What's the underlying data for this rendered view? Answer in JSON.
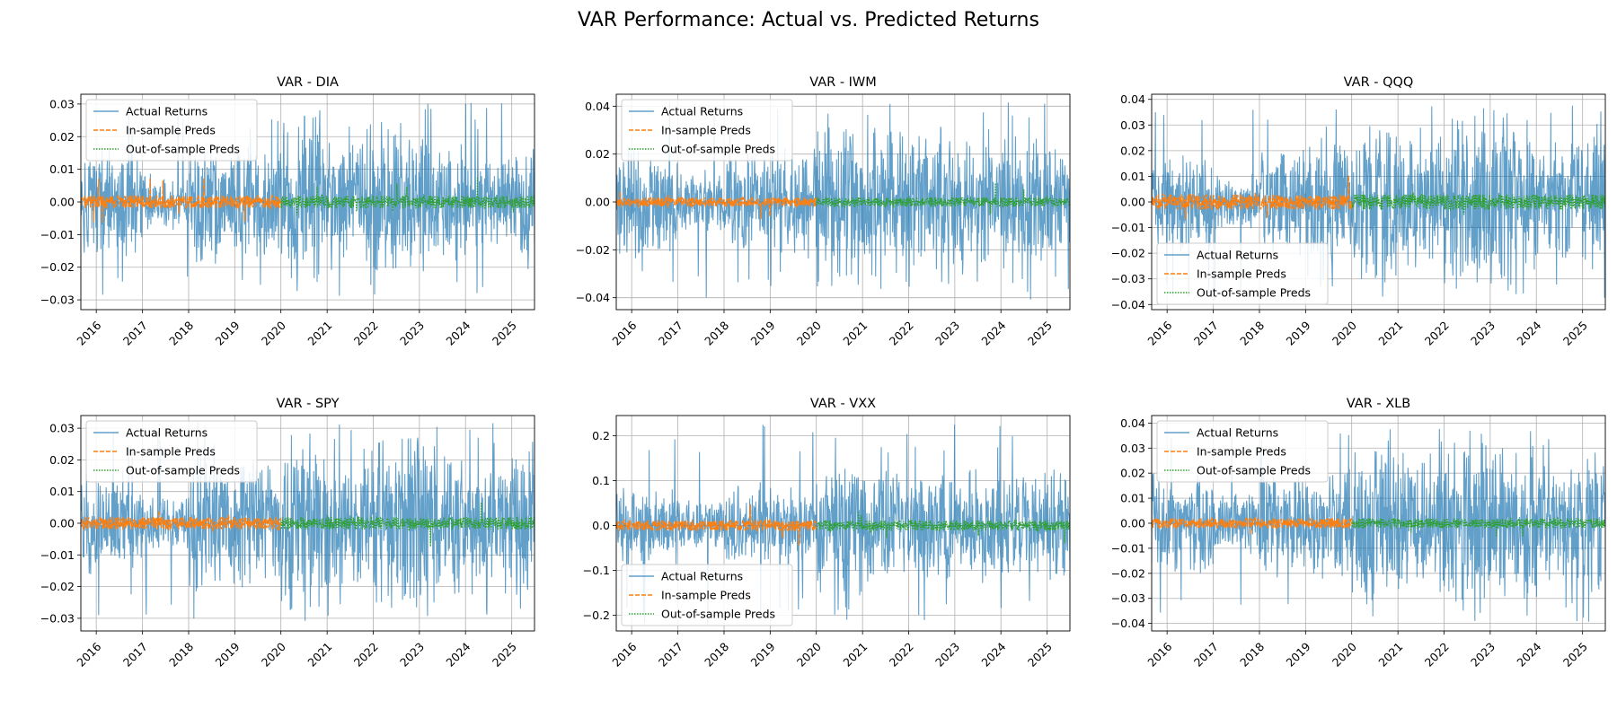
{
  "figure": {
    "title": "VAR Performance: Actual vs. Predicted Returns"
  },
  "colors": {
    "actual": "#1f77b4",
    "insample": "#ff7f0e",
    "outsample": "#2ca02c",
    "grid": "#b0b0b0"
  },
  "chart_data": [
    {
      "type": "line",
      "title": "VAR - DIA",
      "legend_position": "upper-left",
      "grid": true,
      "x_range": [
        "2015-09-01",
        "2025-06-30"
      ],
      "split_date": "2020-01-01",
      "ylim": [
        -0.033,
        0.033
      ],
      "yticks": [
        -0.03,
        -0.02,
        -0.01,
        0.0,
        0.01,
        0.02,
        0.03
      ],
      "ytick_labels": [
        "−0.03",
        "−0.02",
        "−0.01",
        "0.00",
        "0.01",
        "0.02",
        "0.03"
      ],
      "xticks": [
        "2016",
        "2017",
        "2018",
        "2019",
        "2020",
        "2021",
        "2022",
        "2023",
        "2024",
        "2025"
      ],
      "series": [
        {
          "name": "Actual Returns",
          "style": "solid",
          "amplitude_by_year": [
            0.018,
            0.009,
            0.02,
            0.021,
            0.03,
            0.02,
            0.024,
            0.022,
            0.015,
            0.02
          ],
          "min": -0.029,
          "max": 0.031
        },
        {
          "name": "In-sample Preds",
          "style": "dashed",
          "amplitude": 0.002,
          "range": [
            "2015-09-01",
            "2020-01-01"
          ]
        },
        {
          "name": "Out-of-sample Preds",
          "style": "dotted",
          "amplitude": 0.002,
          "range": [
            "2020-01-01",
            "2025-06-30"
          ]
        }
      ]
    },
    {
      "type": "line",
      "title": "VAR - IWM",
      "legend_position": "upper-left",
      "grid": true,
      "x_range": [
        "2015-09-01",
        "2025-06-30"
      ],
      "split_date": "2020-01-01",
      "ylim": [
        -0.045,
        0.045
      ],
      "yticks": [
        -0.04,
        -0.02,
        0.0,
        0.02,
        0.04
      ],
      "ytick_labels": [
        "−0.04",
        "−0.02",
        "0.00",
        "0.02",
        "0.04"
      ],
      "xticks": [
        "2016",
        "2017",
        "2018",
        "2019",
        "2020",
        "2021",
        "2022",
        "2023",
        "2024",
        "2025"
      ],
      "series": [
        {
          "name": "Actual Returns",
          "style": "solid",
          "amplitude_by_year": [
            0.025,
            0.014,
            0.022,
            0.025,
            0.038,
            0.032,
            0.035,
            0.032,
            0.028,
            0.035
          ],
          "min": -0.041,
          "max": 0.042
        },
        {
          "name": "In-sample Preds",
          "style": "dashed",
          "amplitude": 0.002,
          "range": [
            "2015-09-01",
            "2020-01-01"
          ]
        },
        {
          "name": "Out-of-sample Preds",
          "style": "dotted",
          "amplitude": 0.002,
          "range": [
            "2020-01-01",
            "2025-06-30"
          ]
        }
      ]
    },
    {
      "type": "line",
      "title": "VAR - QQQ",
      "legend_position": "lower-left",
      "grid": true,
      "x_range": [
        "2015-09-01",
        "2025-06-30"
      ],
      "split_date": "2020-01-01",
      "ylim": [
        -0.042,
        0.042
      ],
      "yticks": [
        -0.04,
        -0.03,
        -0.02,
        -0.01,
        0.0,
        0.01,
        0.02,
        0.03,
        0.04
      ],
      "ytick_labels": [
        "−0.04",
        "−0.03",
        "−0.02",
        "−0.01",
        "0.00",
        "0.01",
        "0.02",
        "0.03",
        "0.04"
      ],
      "xticks": [
        "2016",
        "2017",
        "2018",
        "2019",
        "2020",
        "2021",
        "2022",
        "2023",
        "2024",
        "2025"
      ],
      "series": [
        {
          "name": "Actual Returns",
          "style": "solid",
          "amplitude_by_year": [
            0.02,
            0.012,
            0.025,
            0.027,
            0.035,
            0.028,
            0.037,
            0.03,
            0.025,
            0.033
          ],
          "min": -0.038,
          "max": 0.038
        },
        {
          "name": "In-sample Preds",
          "style": "dashed",
          "amplitude": 0.003,
          "range": [
            "2015-09-01",
            "2020-01-01"
          ]
        },
        {
          "name": "Out-of-sample Preds",
          "style": "dotted",
          "amplitude": 0.003,
          "range": [
            "2020-01-01",
            "2025-06-30"
          ]
        }
      ]
    },
    {
      "type": "line",
      "title": "VAR - SPY",
      "legend_position": "upper-left",
      "grid": true,
      "x_range": [
        "2015-09-01",
        "2025-06-30"
      ],
      "split_date": "2020-01-01",
      "ylim": [
        -0.034,
        0.034
      ],
      "yticks": [
        -0.03,
        -0.02,
        -0.01,
        0.0,
        0.01,
        0.02,
        0.03
      ],
      "ytick_labels": [
        "−0.03",
        "−0.02",
        "−0.01",
        "0.00",
        "0.01",
        "0.02",
        "0.03"
      ],
      "xticks": [
        "2016",
        "2017",
        "2018",
        "2019",
        "2020",
        "2021",
        "2022",
        "2023",
        "2024",
        "2025"
      ],
      "series": [
        {
          "name": "Actual Returns",
          "style": "solid",
          "amplitude_by_year": [
            0.018,
            0.009,
            0.022,
            0.023,
            0.03,
            0.02,
            0.03,
            0.025,
            0.018,
            0.028
          ],
          "min": -0.031,
          "max": 0.032
        },
        {
          "name": "In-sample Preds",
          "style": "dashed",
          "amplitude": 0.002,
          "range": [
            "2015-09-01",
            "2020-01-01"
          ]
        },
        {
          "name": "Out-of-sample Preds",
          "style": "dotted",
          "amplitude": 0.002,
          "range": [
            "2020-01-01",
            "2025-06-30"
          ]
        }
      ]
    },
    {
      "type": "line",
      "title": "VAR - VXX",
      "legend_position": "lower-left",
      "grid": true,
      "x_range": [
        "2015-09-01",
        "2025-06-30"
      ],
      "split_date": "2020-01-01",
      "ylim": [
        -0.235,
        0.245
      ],
      "yticks": [
        -0.2,
        -0.1,
        0.0,
        0.1,
        0.2
      ],
      "ytick_labels": [
        "−0.2",
        "−0.1",
        "0.0",
        "0.1",
        "0.2"
      ],
      "xticks": [
        "2016",
        "2017",
        "2018",
        "2019",
        "2020",
        "2021",
        "2022",
        "2023",
        "2024",
        "2025"
      ],
      "series": [
        {
          "name": "Actual Returns",
          "style": "solid",
          "amplitude_by_year": [
            0.09,
            0.06,
            0.1,
            0.09,
            0.16,
            0.13,
            0.14,
            0.13,
            0.12,
            0.14
          ],
          "min": -0.22,
          "max": 0.23
        },
        {
          "name": "In-sample Preds",
          "style": "dashed",
          "amplitude": 0.012,
          "range": [
            "2015-09-01",
            "2020-01-01"
          ]
        },
        {
          "name": "Out-of-sample Preds",
          "style": "dotted",
          "amplitude": 0.012,
          "range": [
            "2020-01-01",
            "2025-06-30"
          ]
        }
      ]
    },
    {
      "type": "line",
      "title": "VAR - XLB",
      "legend_position": "upper-left",
      "grid": true,
      "x_range": [
        "2015-09-01",
        "2025-06-30"
      ],
      "split_date": "2020-01-01",
      "ylim": [
        -0.043,
        0.043
      ],
      "yticks": [
        -0.04,
        -0.03,
        -0.02,
        -0.01,
        0.0,
        0.01,
        0.02,
        0.03,
        0.04
      ],
      "ytick_labels": [
        "−0.04",
        "−0.03",
        "−0.02",
        "−0.01",
        "0.00",
        "0.01",
        "0.02",
        "0.03",
        "0.04"
      ],
      "xticks": [
        "2016",
        "2017",
        "2018",
        "2019",
        "2020",
        "2021",
        "2022",
        "2023",
        "2024",
        "2025"
      ],
      "series": [
        {
          "name": "Actual Returns",
          "style": "solid",
          "amplitude_by_year": [
            0.022,
            0.014,
            0.024,
            0.024,
            0.035,
            0.03,
            0.036,
            0.034,
            0.025,
            0.03
          ],
          "min": -0.04,
          "max": 0.04
        },
        {
          "name": "In-sample Preds",
          "style": "dashed",
          "amplitude": 0.002,
          "range": [
            "2015-09-01",
            "2020-01-01"
          ]
        },
        {
          "name": "Out-of-sample Preds",
          "style": "dotted",
          "amplitude": 0.002,
          "range": [
            "2020-01-01",
            "2025-06-30"
          ]
        }
      ]
    }
  ]
}
